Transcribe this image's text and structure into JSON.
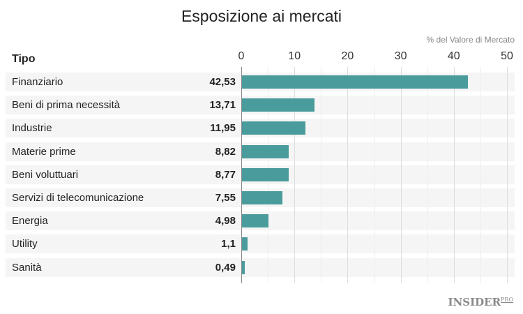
{
  "chart_data": {
    "type": "bar",
    "orientation": "horizontal",
    "title": "Esposizione ai mercati",
    "unit_label": "% del Valore di Mercato",
    "category_header": "Tipo",
    "categories": [
      "Finanziario",
      "Beni di prima necessità",
      "Industrie",
      "Materie prime",
      "Beni voluttuari",
      "Servizi di telecomunicazione",
      "Energia",
      "Utility",
      "Sanità"
    ],
    "values": [
      42.53,
      13.71,
      11.95,
      8.82,
      8.77,
      7.55,
      4.98,
      1.1,
      0.49
    ],
    "value_labels": [
      "42,53",
      "13,71",
      "11,95",
      "8,82",
      "8,77",
      "7,55",
      "4,98",
      "1,1",
      "0,49"
    ],
    "xlim": [
      0,
      50
    ],
    "ticks": [
      "0",
      "10",
      "20",
      "30",
      "40",
      "50"
    ],
    "grid": true,
    "bar_color": "#4a9b9c"
  },
  "branding": {
    "logo": "INSIDER",
    "logo_sup": "PRO"
  }
}
